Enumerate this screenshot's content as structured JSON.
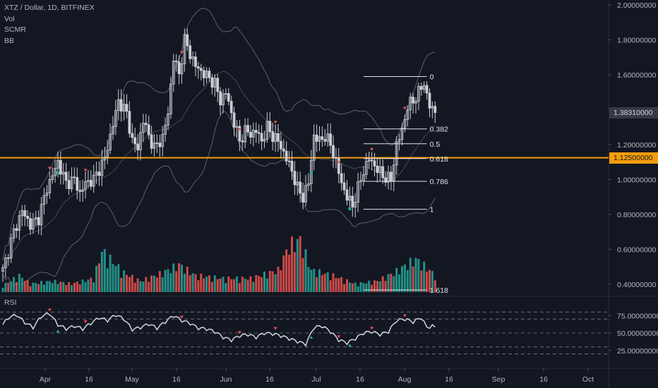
{
  "legend": {
    "title": "XTZ / Dollar, 1D, BITFINEX",
    "studies": [
      "Vol",
      "SCMR",
      "BB"
    ]
  },
  "rsi_label": "RSI",
  "price_tags": {
    "last": "1.38310000",
    "level": "1.12500000"
  },
  "colors": {
    "background": "#131722",
    "up": "#26a69a",
    "down": "#ef5350",
    "candle": "#c9ccd3",
    "level_line": "#f59d0b",
    "bands": "#5d606b",
    "fib": "#e0e3eb",
    "text": "#b2b5be"
  },
  "chart_data": [
    {
      "type": "candlestick",
      "title": "XTZ / Dollar, 1D, BITFINEX",
      "x_ticks": [
        "Apr",
        "16",
        "May",
        "16",
        "Jun",
        "16",
        "Jul",
        "16",
        "Aug",
        "16",
        "Sep",
        "16",
        "Oct"
      ],
      "y_ticks": [
        "2.00000000",
        "1.80000000",
        "1.60000000",
        "1.40000000",
        "1.20000000",
        "1.00000000",
        "0.80000000",
        "0.60000000",
        "0.40000000"
      ],
      "y_range": [
        0.38,
        2.0
      ],
      "horizontal_level": 1.125,
      "last_price": 1.3831,
      "fib_levels": [
        {
          "label": "0",
          "value": 1.59
        },
        {
          "label": "0.382",
          "value": 1.29
        },
        {
          "label": "0.5",
          "value": 1.205
        },
        {
          "label": "0.618",
          "value": 1.12
        },
        {
          "label": "0.786",
          "value": 0.99
        },
        {
          "label": "1",
          "value": 0.83
        },
        {
          "label": "1.618",
          "value": 0.37
        }
      ],
      "close_waypoints": [
        [
          0,
          0.48
        ],
        [
          4,
          0.7
        ],
        [
          7,
          0.82
        ],
        [
          10,
          0.74
        ],
        [
          13,
          0.78
        ],
        [
          16,
          0.95
        ],
        [
          20,
          1.1
        ],
        [
          23,
          0.98
        ],
        [
          26,
          1.0
        ],
        [
          28,
          0.92
        ],
        [
          30,
          0.98
        ],
        [
          33,
          1.0
        ],
        [
          37,
          1.12
        ],
        [
          39,
          1.25
        ],
        [
          42,
          1.45
        ],
        [
          45,
          1.38
        ],
        [
          47,
          1.22
        ],
        [
          49,
          1.18
        ],
        [
          51,
          1.34
        ],
        [
          53,
          1.25
        ],
        [
          55,
          1.18
        ],
        [
          58,
          1.24
        ],
        [
          60,
          1.38
        ],
        [
          62,
          1.7
        ],
        [
          64,
          1.6
        ],
        [
          66,
          1.8
        ],
        [
          68,
          1.72
        ],
        [
          70,
          1.65
        ],
        [
          72,
          1.62
        ],
        [
          75,
          1.58
        ],
        [
          77,
          1.55
        ],
        [
          79,
          1.45
        ],
        [
          81,
          1.5
        ],
        [
          83,
          1.38
        ],
        [
          86,
          1.22
        ],
        [
          88,
          1.28
        ],
        [
          90,
          1.26
        ],
        [
          92,
          1.28
        ],
        [
          94,
          1.22
        ],
        [
          96,
          1.3
        ],
        [
          98,
          1.25
        ],
        [
          100,
          1.22
        ],
        [
          103,
          1.12
        ],
        [
          105,
          1.05
        ],
        [
          107,
          0.95
        ],
        [
          109,
          0.9
        ],
        [
          111,
          0.98
        ],
        [
          113,
          1.25
        ],
        [
          115,
          1.22
        ],
        [
          117,
          1.25
        ],
        [
          119,
          1.2
        ],
        [
          121,
          1.1
        ],
        [
          123,
          0.98
        ],
        [
          125,
          0.9
        ],
        [
          127,
          0.85
        ],
        [
          129,
          0.95
        ],
        [
          131,
          1.05
        ],
        [
          133,
          1.12
        ],
        [
          135,
          1.08
        ],
        [
          138,
          1.02
        ],
        [
          141,
          1.0
        ],
        [
          143,
          1.2
        ],
        [
          145,
          1.28
        ],
        [
          147,
          1.42
        ],
        [
          149,
          1.45
        ],
        [
          151,
          1.5
        ],
        [
          153,
          1.55
        ],
        [
          155,
          1.42
        ],
        [
          157,
          1.38
        ]
      ],
      "volume_scale": [
        0,
        1.0
      ],
      "volume_waypoints": [
        [
          0,
          0.12
        ],
        [
          6,
          0.3
        ],
        [
          10,
          0.15
        ],
        [
          18,
          0.2
        ],
        [
          25,
          0.15
        ],
        [
          33,
          0.25
        ],
        [
          36,
          0.75
        ],
        [
          40,
          0.55
        ],
        [
          44,
          0.35
        ],
        [
          50,
          0.2
        ],
        [
          58,
          0.35
        ],
        [
          64,
          0.5
        ],
        [
          70,
          0.3
        ],
        [
          80,
          0.25
        ],
        [
          90,
          0.25
        ],
        [
          100,
          0.4
        ],
        [
          104,
          0.85
        ],
        [
          108,
          0.95
        ],
        [
          112,
          0.4
        ],
        [
          120,
          0.3
        ],
        [
          128,
          0.15
        ],
        [
          136,
          0.2
        ],
        [
          142,
          0.35
        ],
        [
          150,
          0.6
        ],
        [
          155,
          0.4
        ],
        [
          157,
          0.3
        ]
      ]
    },
    {
      "type": "line",
      "title": "RSI",
      "y_ticks": [
        "75.00000000",
        "50.00000000",
        "25.00000000"
      ],
      "y_range": [
        20,
        85
      ],
      "dashed_levels": [
        80,
        70,
        50,
        30,
        20
      ],
      "waypoints": [
        [
          0,
          62
        ],
        [
          2,
          72
        ],
        [
          5,
          76
        ],
        [
          8,
          65
        ],
        [
          11,
          58
        ],
        [
          14,
          74
        ],
        [
          17,
          78
        ],
        [
          20,
          62
        ],
        [
          23,
          56
        ],
        [
          26,
          60
        ],
        [
          29,
          56
        ],
        [
          32,
          64
        ],
        [
          35,
          72
        ],
        [
          38,
          68
        ],
        [
          41,
          76
        ],
        [
          44,
          70
        ],
        [
          47,
          55
        ],
        [
          50,
          58
        ],
        [
          53,
          63
        ],
        [
          56,
          57
        ],
        [
          59,
          66
        ],
        [
          62,
          75
        ],
        [
          65,
          68
        ],
        [
          68,
          64
        ],
        [
          71,
          57
        ],
        [
          74,
          56
        ],
        [
          77,
          52
        ],
        [
          80,
          44
        ],
        [
          83,
          40
        ],
        [
          86,
          46
        ],
        [
          89,
          48
        ],
        [
          92,
          44
        ],
        [
          95,
          50
        ],
        [
          98,
          49
        ],
        [
          101,
          46
        ],
        [
          104,
          42
        ],
        [
          107,
          38
        ],
        [
          110,
          34
        ],
        [
          113,
          58
        ],
        [
          116,
          60
        ],
        [
          119,
          52
        ],
        [
          122,
          40
        ],
        [
          125,
          36
        ],
        [
          128,
          42
        ],
        [
          131,
          50
        ],
        [
          134,
          52
        ],
        [
          137,
          48
        ],
        [
          140,
          52
        ],
        [
          143,
          68
        ],
        [
          146,
          70
        ],
        [
          149,
          66
        ],
        [
          152,
          72
        ],
        [
          154,
          58
        ],
        [
          156,
          60
        ],
        [
          157,
          58
        ]
      ],
      "signal_markers": [
        {
          "x": 17,
          "kind": "down"
        },
        {
          "x": 30,
          "kind": "down"
        },
        {
          "x": 65,
          "kind": "down"
        },
        {
          "x": 86,
          "kind": "down"
        },
        {
          "x": 99,
          "kind": "down"
        },
        {
          "x": 122,
          "kind": "down"
        },
        {
          "x": 134,
          "kind": "down"
        },
        {
          "x": 146,
          "kind": "down"
        },
        {
          "x": 20,
          "kind": "up"
        },
        {
          "x": 112,
          "kind": "up"
        },
        {
          "x": 126,
          "kind": "up"
        }
      ]
    }
  ]
}
